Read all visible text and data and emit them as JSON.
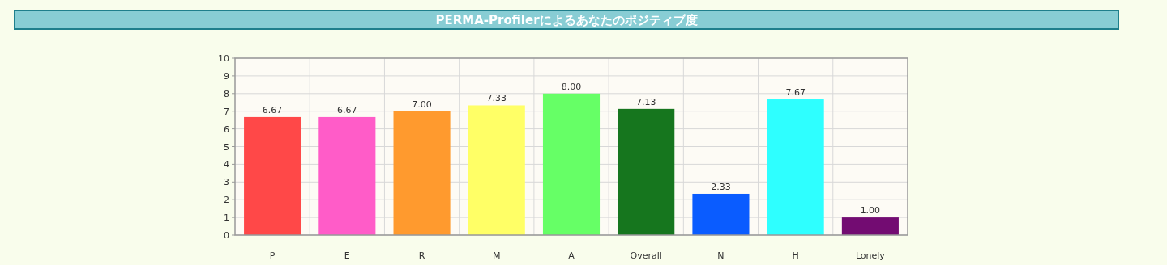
{
  "chart_data": {
    "type": "bar",
    "title": "PERMA-Profilerによるあなたのポジティブ度",
    "categories": [
      "P",
      "E",
      "R",
      "M",
      "A",
      "Overall",
      "N",
      "H",
      "Lonely"
    ],
    "values": [
      6.67,
      6.67,
      7.0,
      7.33,
      8.0,
      7.13,
      2.33,
      7.67,
      1.0
    ],
    "colors": [
      "#ff4848",
      "#ff5cc8",
      "#ff9a2e",
      "#ffff66",
      "#66ff66",
      "#16761e",
      "#0a5cff",
      "#2effff",
      "#730c72"
    ],
    "value_labels": [
      "6.67",
      "6.67",
      "7.00",
      "7.33",
      "8.00",
      "7.13",
      "2.33",
      "7.67",
      "1.00"
    ],
    "ylim": [
      0,
      10
    ],
    "yticks": [
      0,
      1,
      2,
      3,
      4,
      5,
      6,
      7,
      8,
      9,
      10
    ],
    "grid": true
  }
}
